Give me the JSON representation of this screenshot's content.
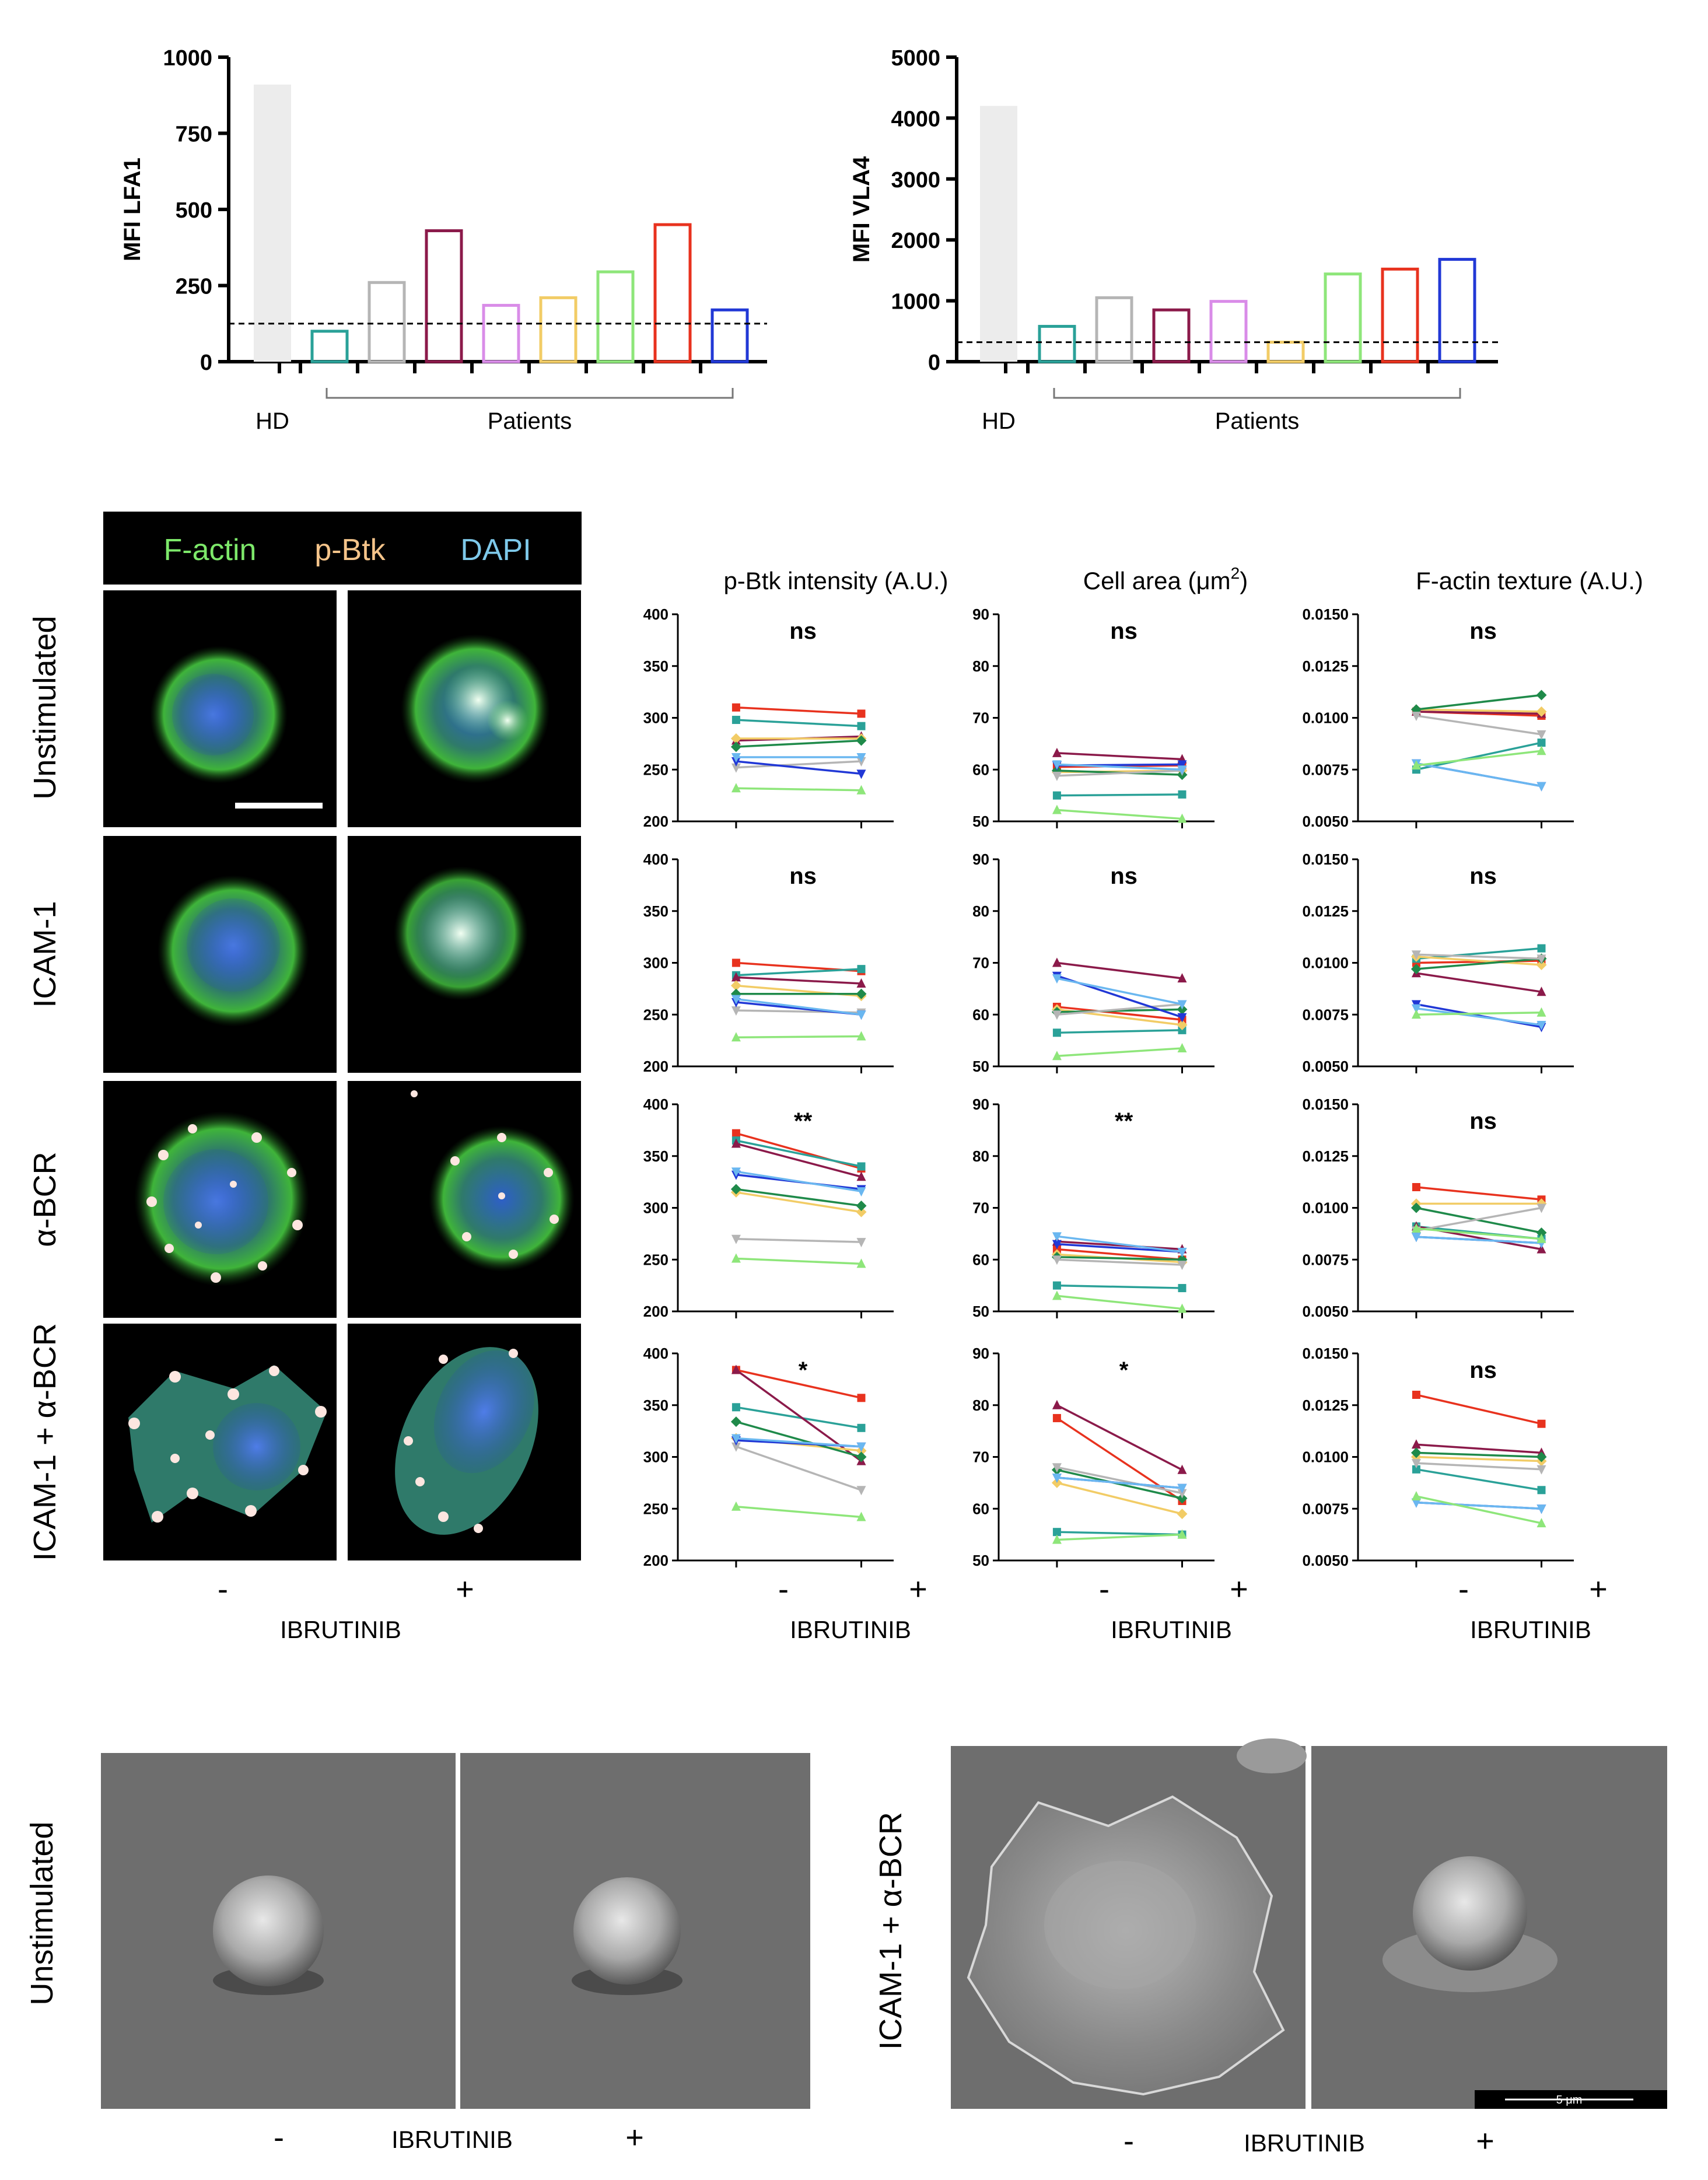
{
  "panel_a": {
    "hd_label": "HD",
    "patients_label": "Patients",
    "lfa1": {
      "ylabel": "MFI LFA1",
      "ticks": [
        "0",
        "250",
        "500",
        "750",
        "1000"
      ],
      "ymax": 1000,
      "hd_value": 910,
      "threshold": 125,
      "bars": [
        {
          "value": 100,
          "color": "#2aa198"
        },
        {
          "value": 260,
          "color": "#b5b5b5"
        },
        {
          "value": 430,
          "color": "#8b1a4a"
        },
        {
          "value": 185,
          "color": "#d98ce8"
        },
        {
          "value": 210,
          "color": "#f2cc66"
        },
        {
          "value": 295,
          "color": "#8ee67a"
        },
        {
          "value": 450,
          "color": "#e8321e"
        },
        {
          "value": 170,
          "color": "#2138d6"
        }
      ]
    },
    "vla4": {
      "ylabel": "MFI VLA4",
      "ticks": [
        "0",
        "1000",
        "2000",
        "3000",
        "4000",
        "5000"
      ],
      "ymax": 5000,
      "hd_value": 4200,
      "threshold": 320,
      "bars": [
        {
          "value": 580,
          "color": "#2aa198"
        },
        {
          "value": 1050,
          "color": "#b5b5b5"
        },
        {
          "value": 850,
          "color": "#8b1a4a"
        },
        {
          "value": 990,
          "color": "#d98ce8"
        },
        {
          "value": 320,
          "color": "#f2cc66"
        },
        {
          "value": 1440,
          "color": "#8ee67a"
        },
        {
          "value": 1520,
          "color": "#e8321e"
        },
        {
          "value": 1680,
          "color": "#2138d6"
        }
      ]
    }
  },
  "panel_b": {
    "legend": {
      "factin": "F-actin",
      "pbtk": "p-Btk",
      "dapi": "DAPI",
      "factin_color": "#7de86a",
      "pbtk_color": "#f5c48a",
      "dapi_color": "#7ec9ea"
    },
    "rows": [
      "Unstimulated",
      "ICAM-1",
      "α-BCR",
      "ICAM-1 + α-BCR"
    ],
    "minus": "-",
    "plus": "+",
    "drug": "IBRUTINIB",
    "col_titles": [
      "p-Btk intensity (A.U.)",
      "Cell area (μm",
      "2",
      ")",
      "F-actin texture (A.U.)"
    ],
    "axes": [
      {
        "min": 200,
        "max": 400,
        "ticks": [
          "200",
          "250",
          "300",
          "350",
          "400"
        ]
      },
      {
        "min": 50,
        "max": 90,
        "ticks": [
          "50",
          "60",
          "70",
          "80",
          "90"
        ]
      },
      {
        "min": 0.005,
        "max": 0.015,
        "ticks": [
          "0.0050",
          "0.0075",
          "0.0100",
          "0.0125",
          "0.0150"
        ]
      }
    ],
    "patient_colors": [
      "#e8321e",
      "#2aa198",
      "#8b1a4a",
      "#f2cc66",
      "#1f8a4a",
      "#b5b5b5",
      "#2138d6",
      "#6ab7f0",
      "#8ee67a"
    ],
    "significance": [
      [
        "ns",
        "ns",
        "ns"
      ],
      [
        "ns",
        "ns",
        "ns"
      ],
      [
        "**",
        "**",
        "ns"
      ],
      [
        "*",
        "*",
        "ns"
      ]
    ],
    "chart_data": [
      [
        {
          "type": "line",
          "pairs": [
            [
              310,
              304
            ],
            [
              298,
              292
            ],
            [
              278,
              282
            ],
            [
              280,
              280
            ],
            [
              272,
              278
            ],
            [
              252,
              258
            ],
            [
              258,
              246
            ],
            [
              262,
              262
            ],
            [
              232,
              230
            ]
          ]
        },
        {
          "type": "line",
          "pairs": [
            [
              60.5,
              60.8
            ],
            [
              55,
              55.2
            ],
            [
              63.2,
              62
            ],
            [
              59.5,
              59.8
            ],
            [
              59.8,
              59
            ],
            [
              58.8,
              59.8
            ],
            [
              60.8,
              61
            ],
            [
              61,
              60
            ],
            [
              52.2,
              50.5
            ]
          ]
        },
        {
          "type": "line",
          "pairs": [
            [
              0.0103,
              0.0101
            ],
            [
              0.0075,
              0.0088
            ],
            [
              0.0103,
              0.0102
            ],
            [
              0.0104,
              0.0103
            ],
            [
              0.0104,
              0.0111
            ],
            [
              0.0101,
              0.0092
            ],
            [
              0.0078,
              0.0067
            ],
            [
              0.0078,
              0.0067
            ],
            [
              0.0077,
              0.0084
            ]
          ]
        }
      ],
      [
        {
          "type": "line",
          "pairs": [
            [
              300,
              292
            ],
            [
              288,
              294
            ],
            [
              286,
              280
            ],
            [
              278,
              268
            ],
            [
              270,
              270
            ],
            [
              254,
              252
            ],
            [
              262,
              250
            ],
            [
              265,
              250
            ],
            [
              228,
              229
            ]
          ]
        },
        {
          "type": "line",
          "pairs": [
            [
              61.5,
              59
            ],
            [
              56.5,
              57
            ],
            [
              70,
              67
            ],
            [
              61,
              58
            ],
            [
              60.5,
              61
            ],
            [
              60,
              62
            ],
            [
              67.5,
              59.5
            ],
            [
              67,
              62
            ],
            [
              52,
              53.5
            ]
          ]
        },
        {
          "type": "line",
          "pairs": [
            [
              0.01,
              0.0101
            ],
            [
              0.0102,
              0.0107
            ],
            [
              0.0095,
              0.0086
            ],
            [
              0.0103,
              0.0099
            ],
            [
              0.0097,
              0.0102
            ],
            [
              0.0104,
              0.0102
            ],
            [
              0.008,
              0.0069
            ],
            [
              0.0078,
              0.007
            ],
            [
              0.0075,
              0.0076
            ]
          ]
        }
      ],
      [
        {
          "type": "line",
          "pairs": [
            [
              372,
              338
            ],
            [
              365,
              340
            ],
            [
              362,
              330
            ],
            [
              315,
              296
            ],
            [
              318,
              302
            ],
            [
              270,
              267
            ],
            [
              332,
              318
            ],
            [
              335,
              316
            ],
            [
              251,
              246
            ]
          ]
        },
        {
          "type": "line",
          "pairs": [
            [
              62,
              60
            ],
            [
              55,
              54.5
            ],
            [
              63.5,
              62
            ],
            [
              61,
              59.5
            ],
            [
              60.5,
              60
            ],
            [
              60,
              59
            ],
            [
              63,
              61.5
            ],
            [
              64.5,
              61.5
            ],
            [
              53,
              50.5
            ]
          ]
        },
        {
          "type": "line",
          "pairs": [
            [
              0.011,
              0.0104
            ],
            [
              0.0091,
              0.0085
            ],
            [
              0.0091,
              0.008
            ],
            [
              0.0102,
              0.0102
            ],
            [
              0.01,
              0.0088
            ],
            [
              0.0089,
              0.01
            ],
            [
              0.0086,
              0.0083
            ],
            [
              0.0086,
              0.0083
            ],
            [
              0.009,
              0.0085
            ]
          ]
        }
      ],
      [
        {
          "type": "line",
          "pairs": [
            [
              384,
              357
            ],
            [
              348,
              328
            ],
            [
              384,
              296
            ],
            [
              318,
              306
            ],
            [
              334,
              300
            ],
            [
              310,
              268
            ],
            [
              316,
              310
            ],
            [
              318,
              310
            ],
            [
              252,
              242
            ]
          ]
        },
        {
          "type": "line",
          "pairs": [
            [
              77.5,
              61.5
            ],
            [
              55.5,
              55
            ],
            [
              80,
              67.5
            ],
            [
              65,
              59
            ],
            [
              67.5,
              62
            ],
            [
              68,
              63
            ],
            [
              66,
              64
            ],
            [
              66,
              64
            ],
            [
              54,
              55
            ]
          ]
        },
        {
          "type": "line",
          "pairs": [
            [
              0.013,
              0.0116
            ],
            [
              0.0094,
              0.0084
            ],
            [
              0.0106,
              0.0102
            ],
            [
              0.01,
              0.0098
            ],
            [
              0.0102,
              0.01
            ],
            [
              0.0097,
              0.0094
            ],
            [
              0.0078,
              0.0075
            ],
            [
              0.0078,
              0.0075
            ],
            [
              0.0081,
              0.0068
            ]
          ]
        }
      ]
    ]
  },
  "panel_c": {
    "left_row_label": "Unstimulated",
    "right_row_label": "ICAM-1 + α-BCR",
    "minus": "-",
    "plus": "+",
    "drug": "IBRUTINIB",
    "scale_label": "5 μm"
  }
}
